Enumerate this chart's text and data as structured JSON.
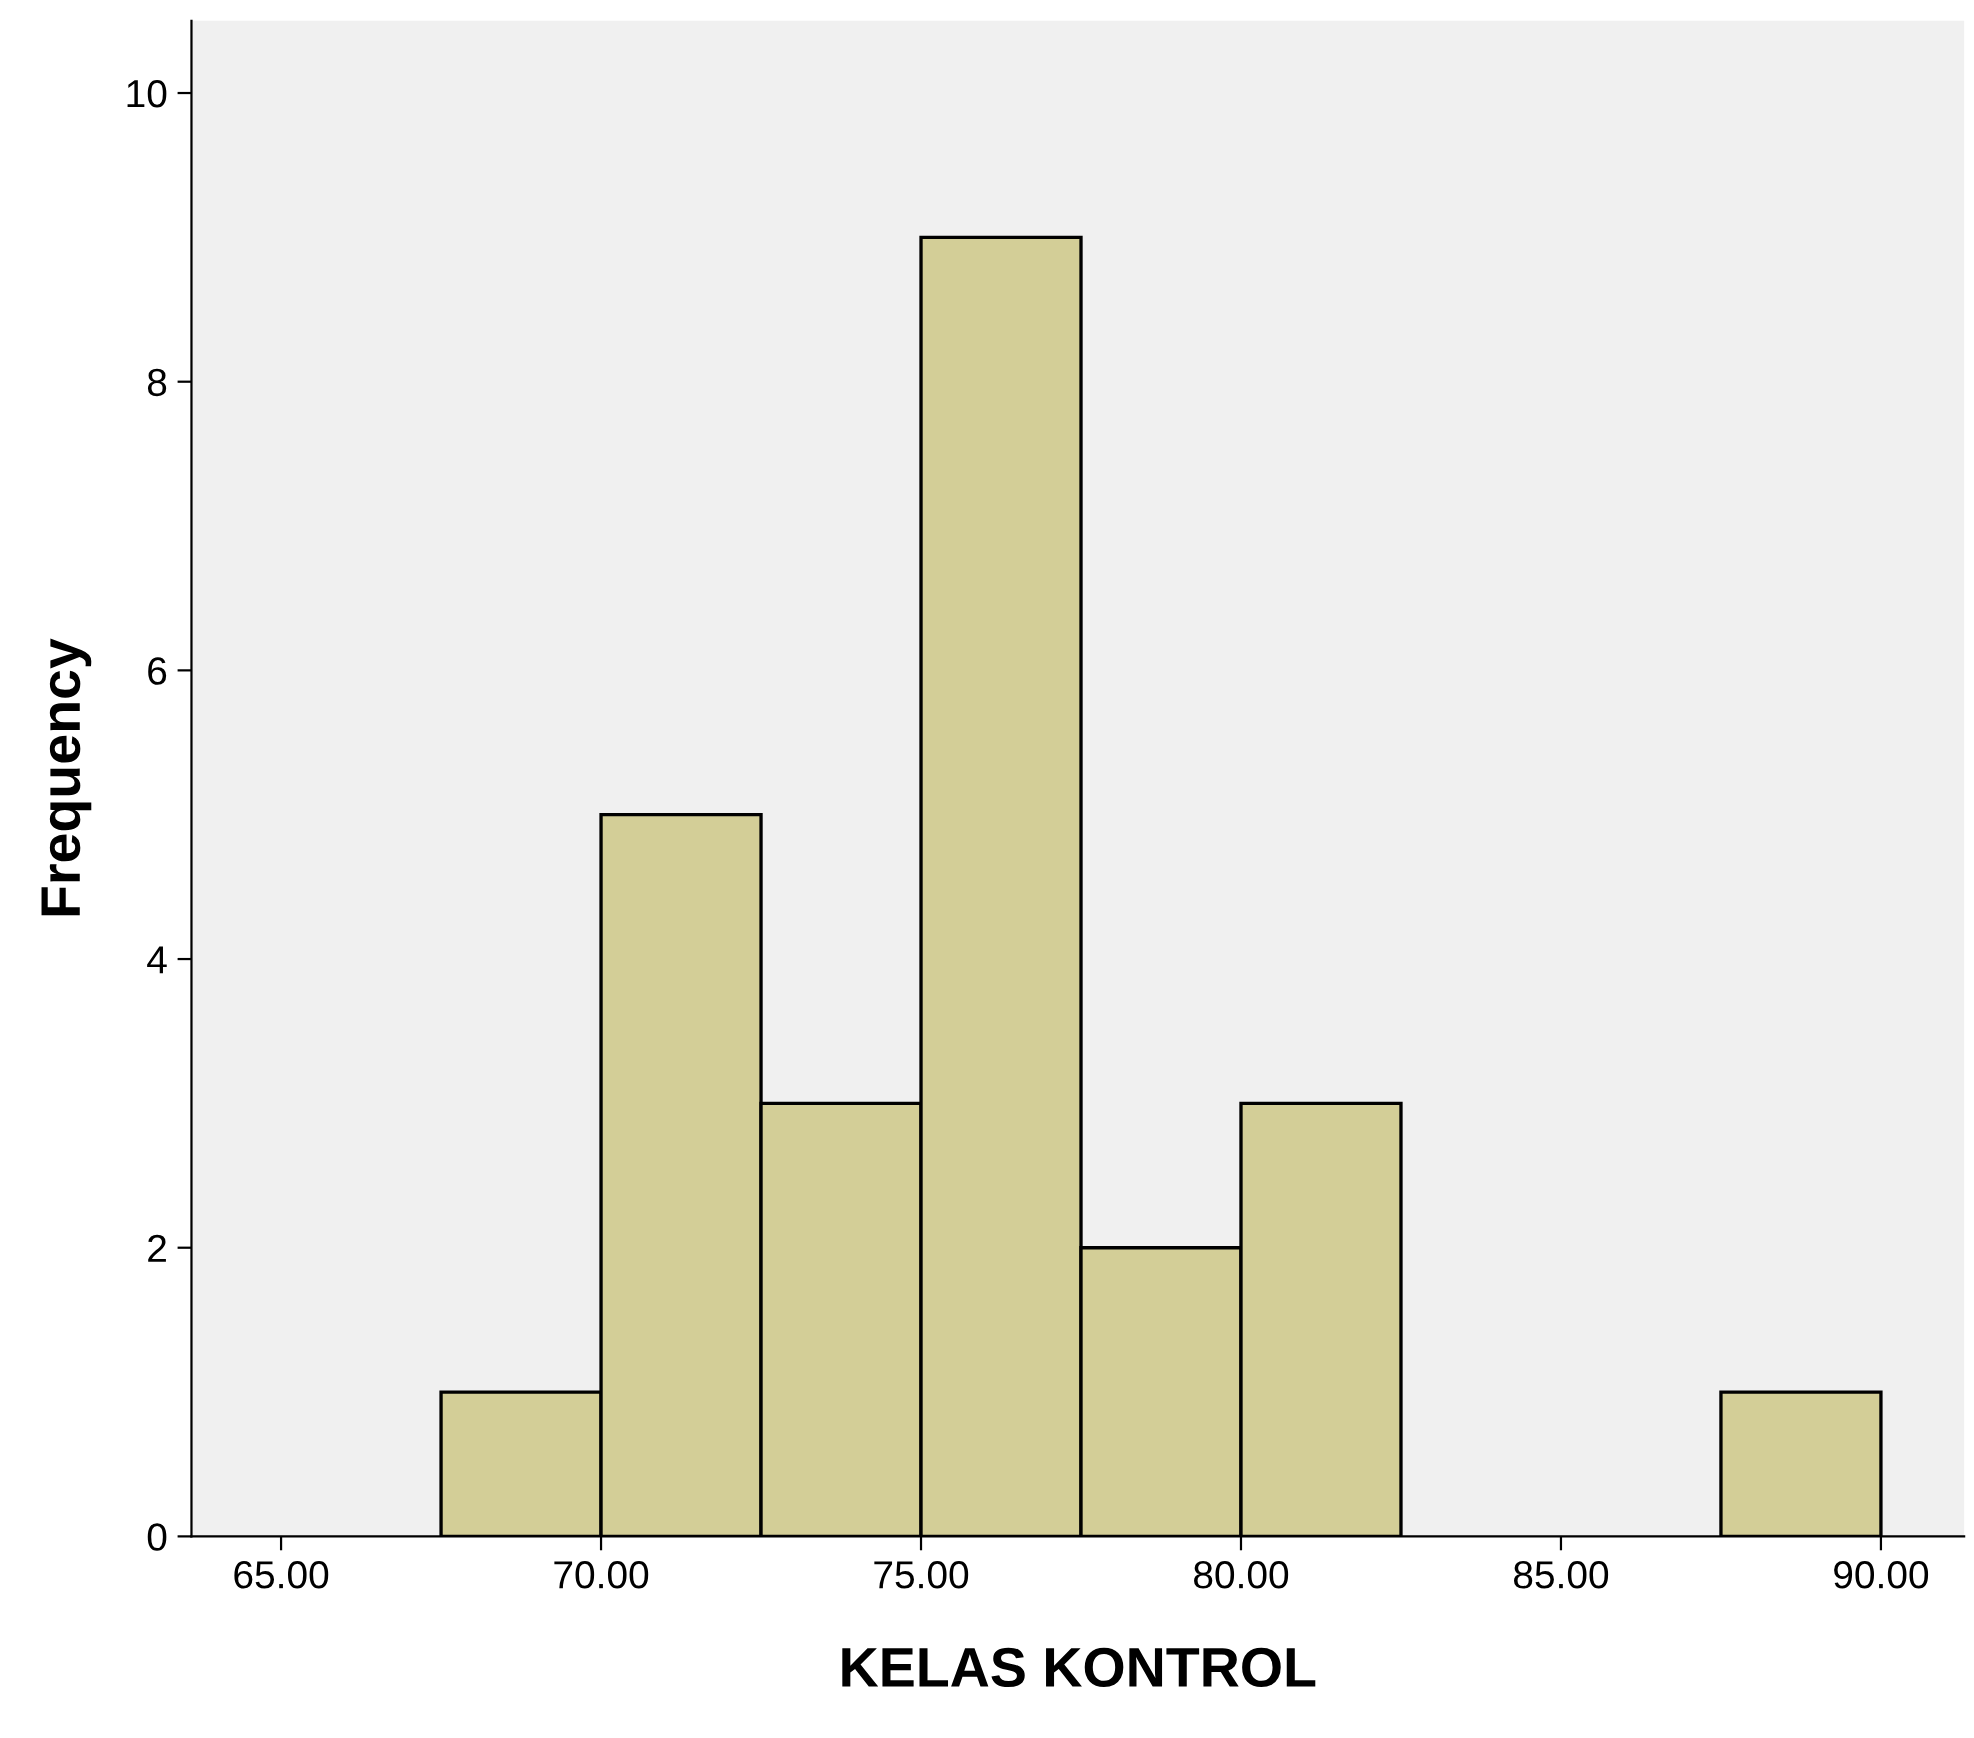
{
  "chart_data": {
    "type": "histogram",
    "xlabel": "KELAS KONTROL",
    "ylabel": "Frequency",
    "bins": [
      67.5,
      70,
      72.5,
      75,
      77.5,
      80,
      82.5,
      85,
      87.5,
      90
    ],
    "values": [
      1,
      5,
      3,
      9,
      2,
      3,
      0,
      0,
      1
    ],
    "color": "#d3ce97",
    "xlim": [
      63.6,
      91.3
    ],
    "xticks": [
      {
        "value": 65,
        "label": "65.00"
      },
      {
        "value": 70,
        "label": "70.00"
      },
      {
        "value": 75,
        "label": "75.00"
      },
      {
        "value": 80,
        "label": "80.00"
      },
      {
        "value": 85,
        "label": "85.00"
      },
      {
        "value": 90,
        "label": "90.00"
      }
    ],
    "ylim": [
      0,
      10.5
    ],
    "yticks": [
      0,
      2,
      4,
      6,
      8,
      10
    ],
    "grid": false,
    "legend": false
  }
}
